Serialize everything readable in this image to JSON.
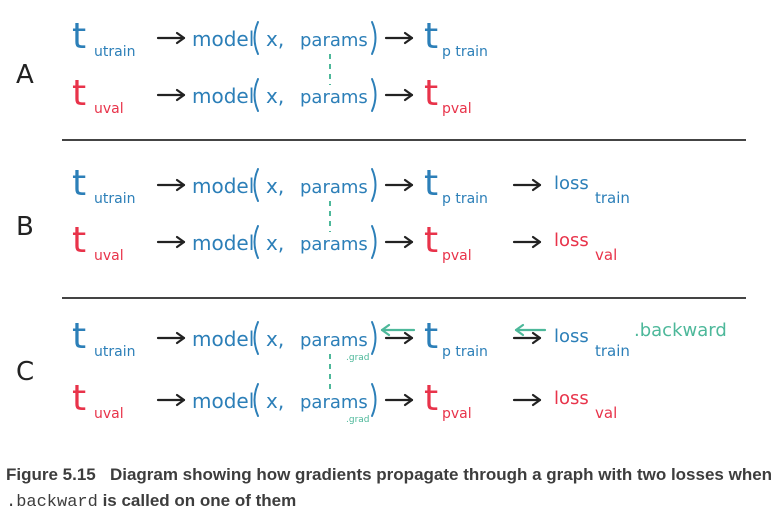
{
  "colors": {
    "blue": "#2c7fb8",
    "red": "#e8334a",
    "green": "#4db89a",
    "rule": "#444444",
    "text": "#222222"
  },
  "panels": [
    {
      "label": "A",
      "rows": [
        {
          "t": "t",
          "t_sub": "utrain",
          "model": "model",
          "x": "x,",
          "params": "params",
          "params_sub": "",
          "out": "t",
          "out_sub": "p train",
          "loss": "",
          "loss_sub": "",
          "extra": "",
          "color": "blue"
        },
        {
          "t": "t",
          "t_sub": "uval",
          "model": "model",
          "x": "x,",
          "params": "params",
          "params_sub": "",
          "out": "t",
          "out_sub": "pval",
          "loss": "",
          "loss_sub": "",
          "extra": "",
          "color": "red"
        }
      ]
    },
    {
      "label": "B",
      "rows": [
        {
          "t": "t",
          "t_sub": "utrain",
          "model": "model",
          "x": "x,",
          "params": "params",
          "params_sub": "",
          "out": "t",
          "out_sub": "p train",
          "loss": "loss",
          "loss_sub": "train",
          "extra": "",
          "color": "blue"
        },
        {
          "t": "t",
          "t_sub": "uval",
          "model": "model",
          "x": "x,",
          "params": "params",
          "params_sub": "",
          "out": "t",
          "out_sub": "pval",
          "loss": "loss",
          "loss_sub": "val",
          "extra": "",
          "color": "red"
        }
      ]
    },
    {
      "label": "C",
      "rows": [
        {
          "t": "t",
          "t_sub": "utrain",
          "model": "model",
          "x": "x,",
          "params": "params",
          "params_sub": ".grad",
          "out": "t",
          "out_sub": "p train",
          "loss": "loss",
          "loss_sub": "train",
          "extra": ".backward",
          "color": "blue"
        },
        {
          "t": "t",
          "t_sub": "uval",
          "model": "model",
          "x": "x,",
          "params": "params",
          "params_sub": ".grad",
          "out": "t",
          "out_sub": "pval",
          "loss": "loss",
          "loss_sub": "val",
          "extra": "",
          "color": "red"
        }
      ]
    }
  ],
  "caption": {
    "figure": "Figure 5.15",
    "text_before": "Diagram showing how gradients propagate through a graph with two losses when",
    "code": ".backward",
    "text_after": "is called on one of them"
  }
}
